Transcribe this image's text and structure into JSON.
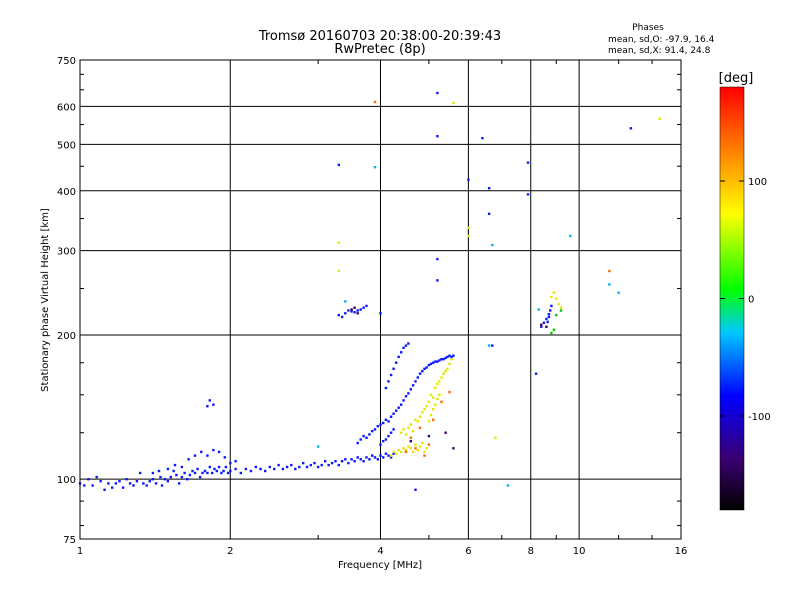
{
  "chart_data": {
    "type": "scatter",
    "title": "Tromsø 20160703 20:38:00-20:39:43",
    "subtitle": "RwPretec (8p)",
    "xlabel": "Frequency [MHz]",
    "ylabel": "Stationary phase Virtual Height [km]",
    "x_scale": "log",
    "y_scale": "log",
    "xlim": [
      1,
      16
    ],
    "ylim": [
      75,
      750
    ],
    "grid": true,
    "x_ticks": [
      1,
      2,
      4,
      6,
      8,
      10,
      16
    ],
    "y_ticks": [
      75,
      100,
      200,
      300,
      400,
      500,
      600,
      750
    ],
    "legend": {
      "title": "Phases",
      "lines": [
        "mean, sd,O: -97.9, 16.4",
        "mean, sd,X:  91.4, 24.8"
      ],
      "placement": "top-right"
    },
    "colorbar": {
      "label": "[deg]",
      "range": [
        -180,
        180
      ],
      "ticks": [
        100,
        0,
        -100
      ],
      "colormap": [
        "#000000",
        "#3b0070",
        "#0000ff",
        "#00c8ff",
        "#00ff00",
        "#ffff00",
        "#ff8000",
        "#ff0000"
      ]
    },
    "series": [
      {
        "role": "main",
        "color": "#0a1aff",
        "points": [
          [
            1.0,
            98
          ],
          [
            1.02,
            97
          ],
          [
            1.04,
            100
          ],
          [
            1.06,
            97
          ],
          [
            1.08,
            101
          ],
          [
            1.1,
            99
          ],
          [
            1.12,
            95
          ],
          [
            1.14,
            98
          ],
          [
            1.16,
            96
          ],
          [
            1.18,
            98
          ],
          [
            1.2,
            99
          ],
          [
            1.22,
            96
          ],
          [
            1.24,
            100
          ],
          [
            1.26,
            98
          ],
          [
            1.28,
            97
          ],
          [
            1.3,
            99
          ],
          [
            1.32,
            103
          ],
          [
            1.34,
            98
          ],
          [
            1.36,
            97
          ],
          [
            1.38,
            99
          ],
          [
            1.4,
            100
          ],
          [
            1.42,
            98
          ],
          [
            1.44,
            104
          ],
          [
            1.46,
            97
          ],
          [
            1.48,
            100
          ],
          [
            1.5,
            99
          ],
          [
            1.52,
            101
          ],
          [
            1.54,
            104
          ],
          [
            1.56,
            102
          ],
          [
            1.58,
            98
          ],
          [
            1.6,
            101
          ],
          [
            1.62,
            103
          ],
          [
            1.64,
            100
          ],
          [
            1.66,
            102
          ],
          [
            1.68,
            104
          ],
          [
            1.7,
            103
          ],
          [
            1.72,
            105
          ],
          [
            1.74,
            101
          ],
          [
            1.76,
            103
          ],
          [
            1.78,
            104
          ],
          [
            1.8,
            103
          ],
          [
            1.82,
            106
          ],
          [
            1.84,
            103
          ],
          [
            1.86,
            105
          ],
          [
            1.88,
            104
          ],
          [
            1.9,
            106
          ],
          [
            1.92,
            103
          ],
          [
            1.94,
            104
          ],
          [
            1.96,
            106
          ],
          [
            1.98,
            103
          ],
          [
            2.0,
            104
          ],
          [
            2.05,
            105
          ],
          [
            2.1,
            103
          ],
          [
            2.15,
            105
          ],
          [
            2.2,
            104
          ],
          [
            2.25,
            106
          ],
          [
            2.3,
            105
          ],
          [
            2.35,
            104
          ],
          [
            2.4,
            106
          ],
          [
            2.45,
            105
          ],
          [
            2.5,
            107
          ],
          [
            2.55,
            105
          ],
          [
            2.6,
            106
          ],
          [
            2.65,
            107
          ],
          [
            2.7,
            105
          ],
          [
            2.75,
            106
          ],
          [
            2.8,
            108
          ],
          [
            2.85,
            106
          ],
          [
            2.9,
            107
          ],
          [
            2.95,
            108
          ],
          [
            3.0,
            106
          ],
          [
            3.05,
            107
          ],
          [
            3.1,
            109
          ],
          [
            3.15,
            107
          ],
          [
            3.2,
            108
          ],
          [
            3.25,
            109
          ],
          [
            3.3,
            107
          ],
          [
            3.35,
            109
          ],
          [
            3.4,
            110
          ],
          [
            3.45,
            108
          ],
          [
            3.5,
            110
          ],
          [
            3.55,
            109
          ],
          [
            3.6,
            111
          ],
          [
            3.65,
            110
          ],
          [
            3.7,
            109
          ],
          [
            3.75,
            111
          ],
          [
            3.8,
            110
          ],
          [
            3.85,
            112
          ],
          [
            3.9,
            111
          ],
          [
            3.95,
            110
          ],
          [
            4.0,
            112
          ],
          [
            4.05,
            111
          ],
          [
            4.1,
            113
          ],
          [
            4.15,
            112
          ],
          [
            4.2,
            111
          ],
          [
            4.25,
            113
          ],
          [
            1.4,
            103
          ],
          [
            1.45,
            101
          ],
          [
            1.5,
            105
          ],
          [
            1.55,
            107
          ],
          [
            1.6,
            106
          ],
          [
            1.65,
            110
          ],
          [
            1.7,
            112
          ],
          [
            1.75,
            114
          ],
          [
            1.8,
            112
          ],
          [
            1.85,
            115
          ],
          [
            1.9,
            114
          ],
          [
            1.95,
            111
          ],
          [
            2.0,
            108
          ],
          [
            2.05,
            109
          ],
          [
            3.6,
            119
          ],
          [
            3.65,
            121
          ],
          [
            3.7,
            123
          ],
          [
            3.75,
            122
          ],
          [
            3.8,
            124
          ],
          [
            3.85,
            126
          ],
          [
            3.9,
            127
          ],
          [
            3.95,
            129
          ],
          [
            4.0,
            130
          ],
          [
            4.05,
            131
          ],
          [
            4.1,
            133
          ],
          [
            4.15,
            132
          ],
          [
            4.2,
            135
          ],
          [
            4.25,
            137
          ],
          [
            4.3,
            139
          ],
          [
            4.35,
            141
          ],
          [
            4.4,
            143
          ],
          [
            4.45,
            146
          ],
          [
            4.5,
            149
          ],
          [
            4.55,
            151
          ],
          [
            4.6,
            154
          ],
          [
            4.65,
            157
          ],
          [
            4.7,
            160
          ],
          [
            4.75,
            163
          ],
          [
            4.8,
            166
          ],
          [
            4.85,
            168
          ],
          [
            4.9,
            170
          ],
          [
            4.95,
            171
          ],
          [
            5.0,
            173
          ],
          [
            5.05,
            174
          ],
          [
            5.1,
            175
          ],
          [
            5.15,
            176
          ],
          [
            5.2,
            176
          ],
          [
            5.25,
            177
          ],
          [
            5.3,
            178
          ],
          [
            5.35,
            178
          ],
          [
            5.4,
            179
          ],
          [
            5.45,
            180
          ],
          [
            5.5,
            181
          ],
          [
            5.55,
            180
          ],
          [
            5.6,
            181
          ],
          [
            4.1,
            155
          ],
          [
            4.15,
            160
          ],
          [
            4.2,
            165
          ],
          [
            4.25,
            170
          ],
          [
            4.3,
            175
          ],
          [
            4.35,
            180
          ],
          [
            4.4,
            184
          ],
          [
            4.45,
            188
          ],
          [
            4.5,
            190
          ],
          [
            4.55,
            192
          ],
          [
            4.0,
            118
          ],
          [
            4.05,
            120
          ],
          [
            4.1,
            121
          ],
          [
            4.15,
            123
          ],
          [
            4.2,
            125
          ],
          [
            4.25,
            127
          ],
          [
            3.3,
            220
          ],
          [
            3.35,
            218
          ],
          [
            3.4,
            222
          ],
          [
            3.45,
            225
          ],
          [
            3.5,
            224
          ],
          [
            3.55,
            223
          ],
          [
            3.6,
            225
          ],
          [
            3.65,
            226
          ],
          [
            3.7,
            228
          ],
          [
            3.75,
            230
          ],
          [
            4.0,
            222
          ],
          [
            1.8,
            142
          ],
          [
            1.82,
            146
          ],
          [
            1.85,
            143
          ],
          [
            8.4,
            208
          ],
          [
            8.5,
            212
          ],
          [
            8.6,
            216
          ],
          [
            8.7,
            221
          ],
          [
            8.75,
            225
          ],
          [
            8.8,
            230
          ],
          [
            8.7,
            218
          ],
          [
            8.65,
            213
          ],
          [
            3.3,
            453
          ],
          [
            5.2,
            640
          ],
          [
            5.2,
            520
          ],
          [
            6.0,
            422
          ],
          [
            6.4,
            515
          ],
          [
            6.6,
            405
          ],
          [
            6.6,
            358
          ],
          [
            7.9,
            458
          ],
          [
            7.9,
            393
          ],
          [
            5.2,
            288
          ],
          [
            5.2,
            260
          ],
          [
            12.7,
            540
          ],
          [
            4.7,
            95
          ],
          [
            6.7,
            190
          ],
          [
            8.2,
            166
          ]
        ]
      },
      {
        "role": "ordinary-pos",
        "color": "#e6e600",
        "points": [
          [
            4.2,
            112
          ],
          [
            4.25,
            114
          ],
          [
            4.3,
            113
          ],
          [
            4.35,
            115
          ],
          [
            4.4,
            114
          ],
          [
            4.45,
            116
          ],
          [
            4.5,
            115
          ],
          [
            4.55,
            117
          ],
          [
            4.6,
            116
          ],
          [
            4.65,
            114
          ],
          [
            4.7,
            118
          ],
          [
            4.75,
            115
          ],
          [
            4.8,
            117
          ],
          [
            4.85,
            119
          ],
          [
            4.9,
            114
          ],
          [
            4.95,
            116
          ],
          [
            4.4,
            125
          ],
          [
            4.45,
            127
          ],
          [
            4.5,
            124
          ],
          [
            4.55,
            128
          ],
          [
            4.6,
            130
          ],
          [
            4.65,
            126
          ],
          [
            4.7,
            133
          ],
          [
            4.75,
            132
          ],
          [
            4.8,
            135
          ],
          [
            4.85,
            138
          ],
          [
            4.9,
            140
          ],
          [
            4.95,
            142
          ],
          [
            5.0,
            145
          ],
          [
            5.05,
            150
          ],
          [
            5.1,
            148
          ],
          [
            5.15,
            155
          ],
          [
            5.2,
            158
          ],
          [
            5.25,
            160
          ],
          [
            5.3,
            163
          ],
          [
            5.35,
            166
          ],
          [
            5.4,
            168
          ],
          [
            5.45,
            170
          ],
          [
            5.5,
            174
          ],
          [
            5.55,
            178
          ],
          [
            5.0,
            132
          ],
          [
            5.05,
            136
          ],
          [
            5.1,
            140
          ],
          [
            5.15,
            143
          ],
          [
            5.2,
            147
          ],
          [
            5.25,
            150
          ],
          [
            8.9,
            245
          ],
          [
            9.0,
            238
          ],
          [
            9.1,
            232
          ],
          [
            9.2,
            228
          ],
          [
            8.8,
            240
          ],
          [
            6.0,
            335
          ],
          [
            6.0,
            322
          ],
          [
            3.3,
            312
          ],
          [
            3.3,
            272
          ],
          [
            14.5,
            565
          ],
          [
            5.6,
            610
          ],
          [
            6.8,
            122
          ]
        ]
      },
      {
        "role": "extra-pos",
        "color": "#ff6a00",
        "points": [
          [
            4.5,
            114
          ],
          [
            4.7,
            116
          ],
          [
            4.9,
            112
          ],
          [
            5.0,
            118
          ],
          [
            4.6,
            122
          ],
          [
            4.8,
            128
          ],
          [
            5.1,
            133
          ],
          [
            5.3,
            145
          ],
          [
            5.5,
            152
          ],
          [
            3.9,
            613
          ],
          [
            11.5,
            272
          ]
        ]
      },
      {
        "role": "neg-green",
        "color": "#00c800",
        "points": [
          [
            9.0,
            220
          ],
          [
            9.2,
            225
          ],
          [
            8.9,
            205
          ],
          [
            8.8,
            202
          ]
        ]
      },
      {
        "role": "neg-cyan",
        "color": "#00b4f0",
        "points": [
          [
            3.9,
            448
          ],
          [
            6.6,
            190
          ],
          [
            6.7,
            308
          ],
          [
            8.3,
            226
          ],
          [
            9.6,
            322
          ],
          [
            11.5,
            255
          ],
          [
            12.0,
            245
          ],
          [
            7.2,
            97
          ],
          [
            3.0,
            117
          ],
          [
            3.4,
            235
          ]
        ]
      },
      {
        "role": "neg-dark",
        "color": "#3a0066",
        "points": [
          [
            3.55,
            228
          ],
          [
            3.5,
            226
          ],
          [
            3.6,
            222
          ],
          [
            8.4,
            210
          ],
          [
            8.6,
            208
          ],
          [
            4.6,
            120
          ],
          [
            5.0,
            123
          ],
          [
            5.6,
            116
          ],
          [
            5.4,
            125
          ]
        ]
      }
    ]
  }
}
